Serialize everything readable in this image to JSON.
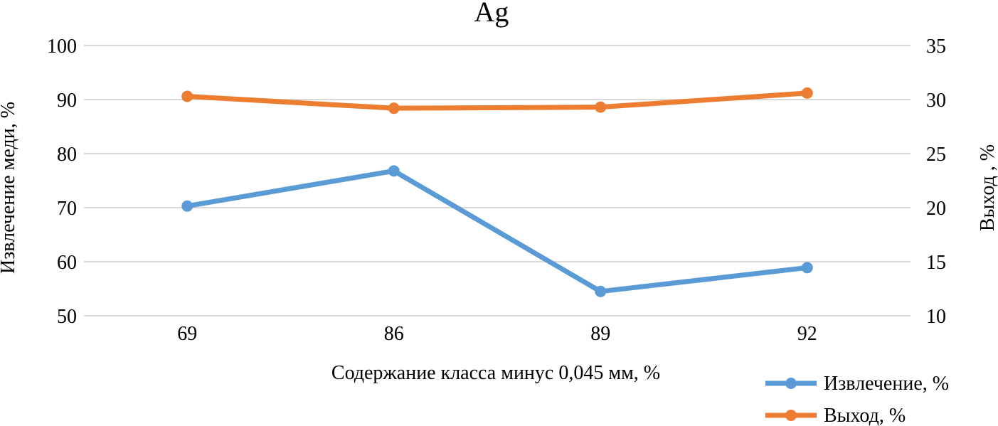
{
  "chart_data": {
    "type": "line",
    "title": "Ag",
    "xlabel": "Содержание класса минус 0,045 мм, %",
    "ylabel_left": "Извлечение меди, %",
    "ylabel_right": "Выход , %",
    "categories": [
      "69",
      "86",
      "89",
      "92"
    ],
    "y_left": {
      "min": 50,
      "max": 100,
      "step": 10,
      "ticks": [
        "50",
        "60",
        "70",
        "80",
        "90",
        "100"
      ]
    },
    "y_right": {
      "min": 10,
      "max": 35,
      "step": 5,
      "ticks": [
        "10",
        "15",
        "20",
        "25",
        "30",
        "35"
      ]
    },
    "grid": true,
    "legend_position": "bottom-right",
    "series": [
      {
        "name": "Извлечение, %",
        "axis": "left",
        "color": "#5B9BD5",
        "values": [
          70.3,
          76.8,
          54.5,
          58.9
        ]
      },
      {
        "name": "Выход, %",
        "axis": "right",
        "color": "#ED7D31",
        "values": [
          30.3,
          29.2,
          29.3,
          30.6
        ]
      }
    ]
  }
}
